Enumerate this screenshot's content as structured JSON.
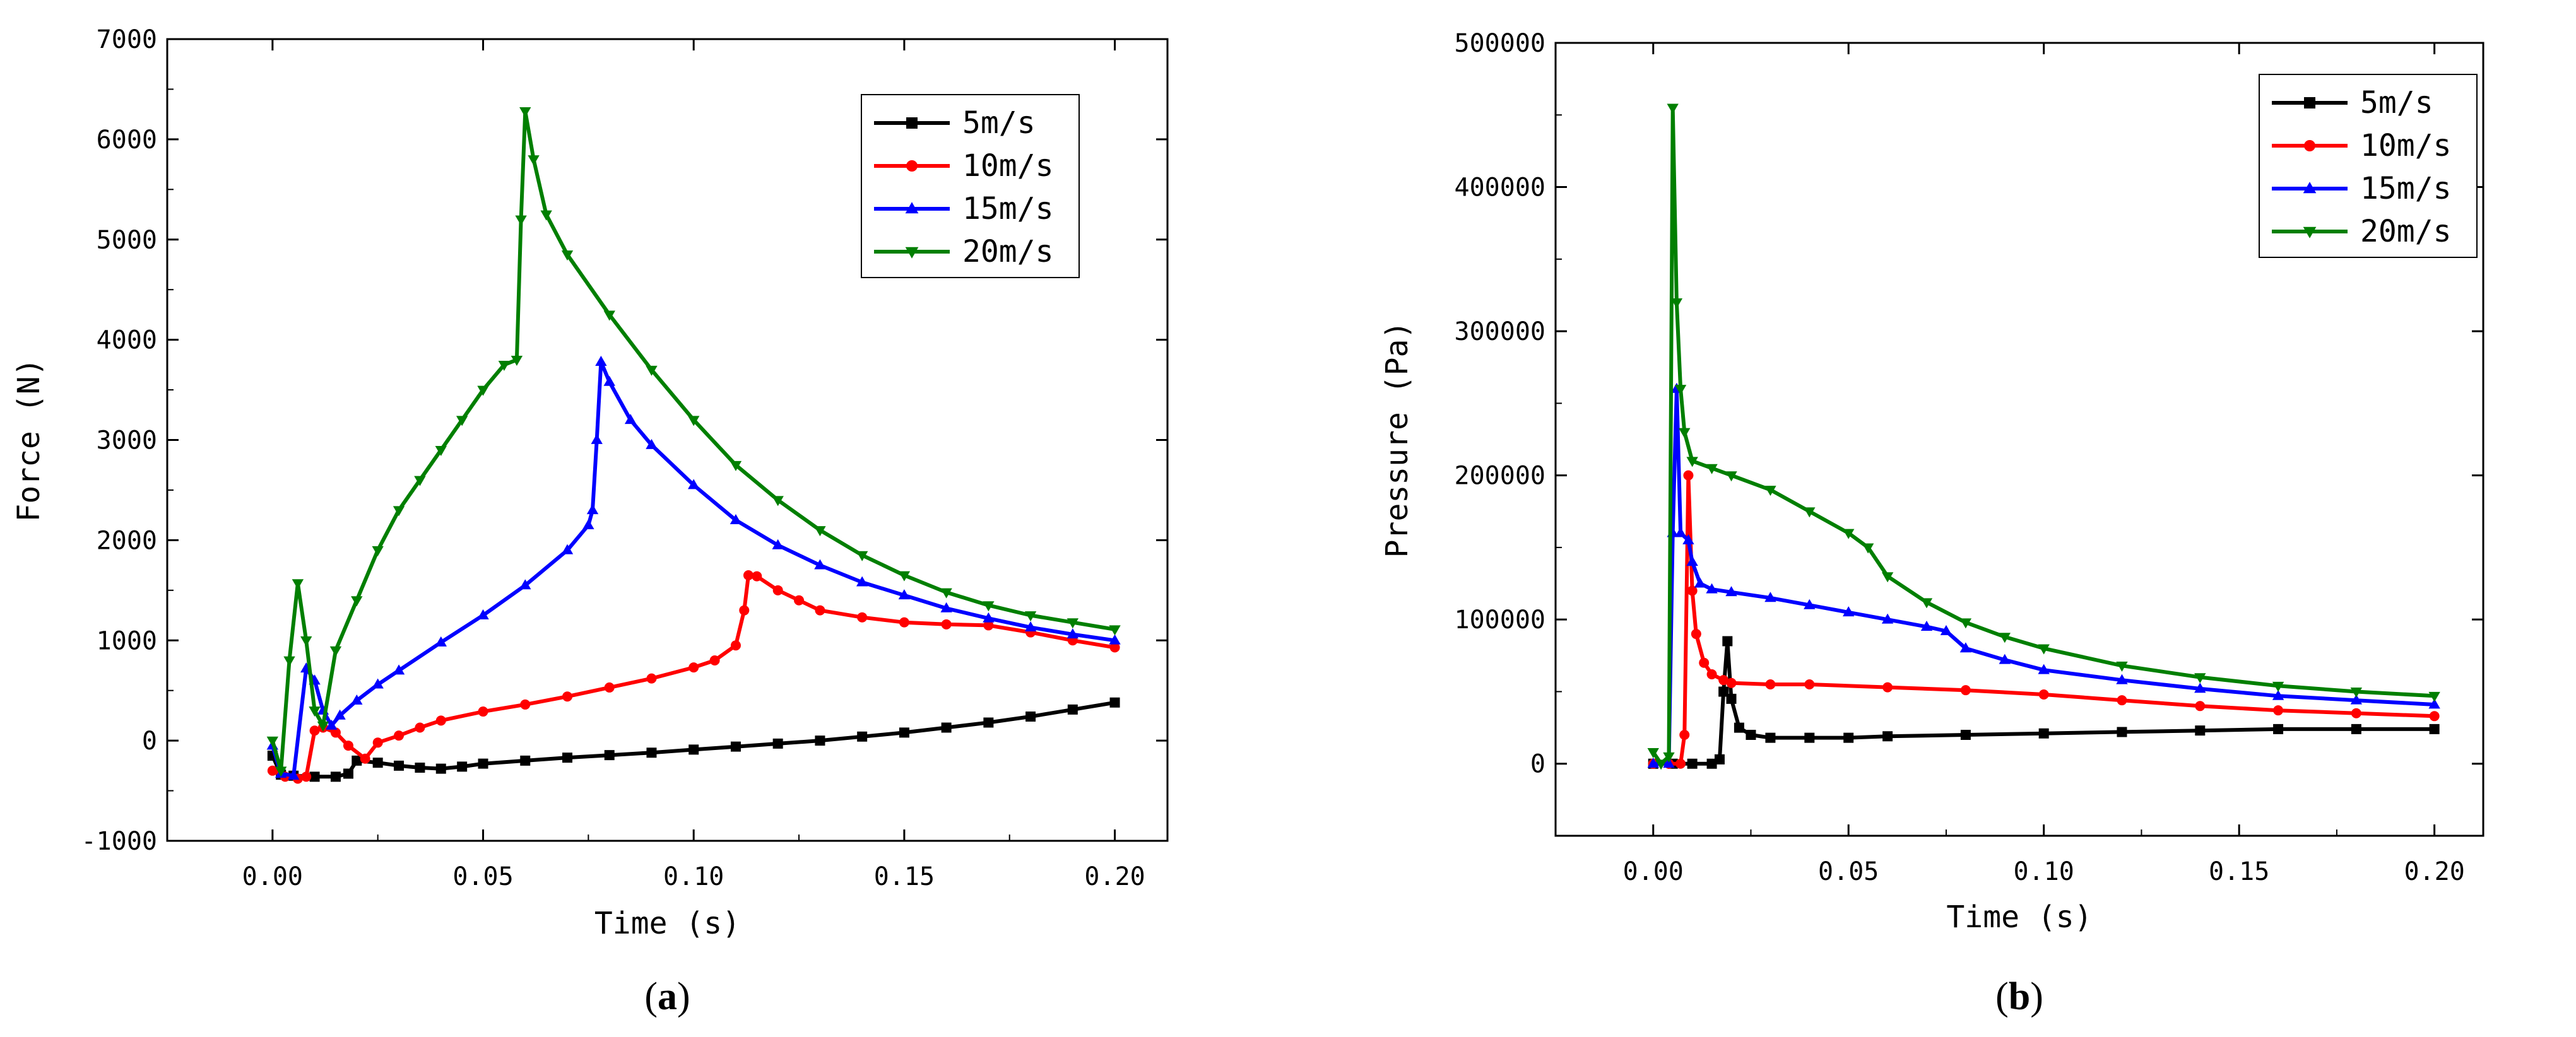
{
  "chart_data": [
    {
      "type": "line",
      "panel_label": "a",
      "title": "",
      "xlabel": "Time (s)",
      "ylabel": "Force (N)",
      "xlim": [
        -0.025,
        0.2125
      ],
      "ylim": [
        -1000,
        7000
      ],
      "xticks": [
        0.0,
        0.05,
        0.1,
        0.15,
        0.2
      ],
      "xtick_labels": [
        "0.00",
        "0.05",
        "0.10",
        "0.15",
        "0.20"
      ],
      "yticks": [
        -1000,
        0,
        1000,
        2000,
        3000,
        4000,
        5000,
        6000,
        7000
      ],
      "ytick_labels": [
        "-1000",
        "0",
        "1000",
        "2000",
        "3000",
        "4000",
        "5000",
        "6000",
        "7000"
      ],
      "legend_position": "top-right",
      "series": [
        {
          "name": "5m/s",
          "color": "#000000",
          "marker": "square",
          "x": [
            0,
            0.002,
            0.005,
            0.01,
            0.015,
            0.018,
            0.02,
            0.025,
            0.03,
            0.035,
            0.04,
            0.045,
            0.05,
            0.06,
            0.07,
            0.08,
            0.09,
            0.1,
            0.11,
            0.12,
            0.13,
            0.14,
            0.15,
            0.16,
            0.17,
            0.18,
            0.19,
            0.2
          ],
          "y": [
            -150,
            -340,
            -350,
            -360,
            -360,
            -330,
            -200,
            -220,
            -250,
            -270,
            -280,
            -260,
            -230,
            -200,
            -170,
            -145,
            -120,
            -90,
            -60,
            -30,
            0,
            40,
            80,
            130,
            180,
            240,
            310,
            380
          ]
        },
        {
          "name": "10m/s",
          "color": "#ff0000",
          "marker": "circle",
          "x": [
            0,
            0.003,
            0.006,
            0.008,
            0.01,
            0.012,
            0.015,
            0.018,
            0.022,
            0.025,
            0.03,
            0.035,
            0.04,
            0.05,
            0.06,
            0.07,
            0.08,
            0.09,
            0.1,
            0.105,
            0.11,
            0.112,
            0.113,
            0.115,
            0.12,
            0.125,
            0.13,
            0.14,
            0.15,
            0.16,
            0.17,
            0.18,
            0.19,
            0.2
          ],
          "y": [
            -300,
            -360,
            -380,
            -360,
            100,
            130,
            80,
            -50,
            -180,
            -20,
            50,
            130,
            200,
            290,
            360,
            440,
            530,
            620,
            730,
            800,
            950,
            1300,
            1650,
            1640,
            1500,
            1400,
            1300,
            1230,
            1180,
            1160,
            1150,
            1080,
            1000,
            930
          ]
        },
        {
          "name": "15m/s",
          "color": "#0000ff",
          "marker": "triangle-up",
          "x": [
            0,
            0.002,
            0.005,
            0.008,
            0.01,
            0.012,
            0.014,
            0.016,
            0.02,
            0.025,
            0.03,
            0.04,
            0.05,
            0.06,
            0.07,
            0.075,
            0.076,
            0.077,
            0.078,
            0.08,
            0.085,
            0.09,
            0.1,
            0.11,
            0.12,
            0.13,
            0.14,
            0.15,
            0.16,
            0.17,
            0.18,
            0.19,
            0.2
          ],
          "y": [
            -50,
            -330,
            -350,
            720,
            600,
            300,
            150,
            250,
            400,
            560,
            700,
            980,
            1250,
            1550,
            1900,
            2150,
            2300,
            3000,
            3780,
            3580,
            3200,
            2950,
            2550,
            2200,
            1950,
            1750,
            1580,
            1450,
            1320,
            1220,
            1130,
            1060,
            1000
          ]
        },
        {
          "name": "20m/s",
          "color": "#007f00",
          "marker": "triangle-down",
          "x": [
            0,
            0.002,
            0.004,
            0.006,
            0.008,
            0.01,
            0.012,
            0.015,
            0.02,
            0.025,
            0.03,
            0.035,
            0.04,
            0.045,
            0.05,
            0.055,
            0.058,
            0.059,
            0.06,
            0.062,
            0.065,
            0.07,
            0.08,
            0.09,
            0.1,
            0.11,
            0.12,
            0.13,
            0.14,
            0.15,
            0.16,
            0.17,
            0.18,
            0.19,
            0.2
          ],
          "y": [
            0,
            -300,
            800,
            1570,
            1000,
            300,
            150,
            900,
            1400,
            1900,
            2300,
            2600,
            2900,
            3200,
            3500,
            3750,
            3800,
            5200,
            6280,
            5800,
            5250,
            4850,
            4250,
            3700,
            3200,
            2750,
            2400,
            2100,
            1850,
            1650,
            1480,
            1350,
            1250,
            1180,
            1110
          ]
        }
      ]
    },
    {
      "type": "line",
      "panel_label": "b",
      "title": "",
      "xlabel": "Time (s)",
      "ylabel": "Pressure (Pa)",
      "xlim": [
        -0.025,
        0.2125
      ],
      "ylim": [
        -50000,
        500000
      ],
      "xticks": [
        0.0,
        0.05,
        0.1,
        0.15,
        0.2
      ],
      "xtick_labels": [
        "0.00",
        "0.05",
        "0.10",
        "0.15",
        "0.20"
      ],
      "yticks": [
        0,
        100000,
        200000,
        300000,
        400000,
        500000
      ],
      "ytick_labels": [
        "0",
        "100000",
        "200000",
        "300000",
        "400000",
        "500000"
      ],
      "legend_position": "top-right",
      "series": [
        {
          "name": "5m/s",
          "color": "#000000",
          "marker": "square",
          "x": [
            0,
            0.005,
            0.01,
            0.015,
            0.017,
            0.018,
            0.019,
            0.02,
            0.022,
            0.025,
            0.03,
            0.04,
            0.05,
            0.06,
            0.08,
            0.1,
            0.12,
            0.14,
            0.16,
            0.18,
            0.2
          ],
          "y": [
            0,
            0,
            0,
            0,
            3000,
            50000,
            85000,
            45000,
            25000,
            20000,
            18000,
            18000,
            18000,
            19000,
            20000,
            21000,
            22000,
            23000,
            24000,
            24000,
            24000
          ]
        },
        {
          "name": "10m/s",
          "color": "#ff0000",
          "marker": "circle",
          "x": [
            0,
            0.004,
            0.007,
            0.008,
            0.009,
            0.01,
            0.011,
            0.013,
            0.015,
            0.018,
            0.02,
            0.03,
            0.04,
            0.06,
            0.08,
            0.1,
            0.12,
            0.14,
            0.16,
            0.18,
            0.2
          ],
          "y": [
            0,
            0,
            0,
            20000,
            200000,
            120000,
            90000,
            70000,
            62000,
            58000,
            56000,
            55000,
            55000,
            53000,
            51000,
            48000,
            44000,
            40000,
            37000,
            35000,
            33000
          ]
        },
        {
          "name": "15m/s",
          "color": "#0000ff",
          "marker": "triangle-up",
          "x": [
            0,
            0.004,
            0.005,
            0.006,
            0.007,
            0.009,
            0.01,
            0.012,
            0.015,
            0.02,
            0.03,
            0.04,
            0.05,
            0.06,
            0.07,
            0.075,
            0.08,
            0.09,
            0.1,
            0.12,
            0.14,
            0.16,
            0.18,
            0.2
          ],
          "y": [
            0,
            0,
            160000,
            260000,
            160000,
            155000,
            140000,
            125000,
            121000,
            119000,
            115000,
            110000,
            105000,
            100000,
            95000,
            92000,
            80000,
            72000,
            65000,
            58000,
            52000,
            47000,
            44000,
            41000
          ]
        },
        {
          "name": "20m/s",
          "color": "#007f00",
          "marker": "triangle-down",
          "x": [
            0,
            0.002,
            0.004,
            0.005,
            0.006,
            0.007,
            0.008,
            0.01,
            0.015,
            0.02,
            0.03,
            0.04,
            0.05,
            0.055,
            0.06,
            0.07,
            0.08,
            0.09,
            0.1,
            0.12,
            0.14,
            0.16,
            0.18,
            0.2
          ],
          "y": [
            8000,
            0,
            5000,
            455000,
            320000,
            260000,
            230000,
            210000,
            205000,
            200000,
            190000,
            175000,
            160000,
            150000,
            130000,
            112000,
            98000,
            88000,
            80000,
            68000,
            60000,
            54000,
            50000,
            47000
          ]
        }
      ]
    }
  ]
}
